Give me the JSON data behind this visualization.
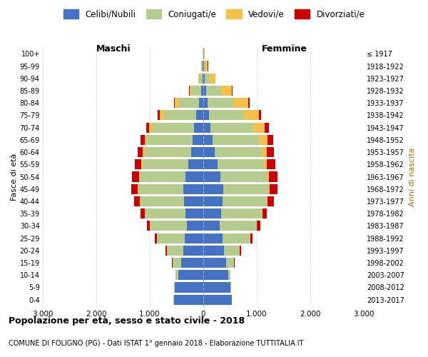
{
  "age_groups": [
    "0-4",
    "5-9",
    "10-14",
    "15-19",
    "20-24",
    "25-29",
    "30-34",
    "35-39",
    "40-44",
    "45-49",
    "50-54",
    "55-59",
    "60-64",
    "65-69",
    "70-74",
    "75-79",
    "80-84",
    "85-89",
    "90-94",
    "95-99",
    "100+"
  ],
  "birth_years": [
    "2013-2017",
    "2008-2012",
    "2003-2007",
    "1998-2002",
    "1993-1997",
    "1988-1992",
    "1983-1987",
    "1978-1982",
    "1973-1977",
    "1968-1972",
    "1963-1967",
    "1958-1962",
    "1953-1957",
    "1948-1952",
    "1943-1947",
    "1938-1942",
    "1933-1937",
    "1928-1932",
    "1923-1927",
    "1918-1922",
    "≤ 1917"
  ],
  "males": {
    "celibe": [
      550,
      540,
      470,
      420,
      380,
      350,
      310,
      330,
      360,
      380,
      340,
      280,
      230,
      200,
      170,
      130,
      80,
      40,
      20,
      10,
      5
    ],
    "coniugato": [
      5,
      10,
      50,
      150,
      300,
      520,
      680,
      760,
      820,
      840,
      850,
      860,
      870,
      850,
      780,
      600,
      380,
      180,
      60,
      20,
      5
    ],
    "vedovo": [
      0,
      0,
      0,
      1,
      2,
      3,
      5,
      5,
      8,
      10,
      15,
      20,
      30,
      50,
      60,
      80,
      70,
      40,
      15,
      5,
      2
    ],
    "divorziato": [
      0,
      1,
      3,
      10,
      20,
      40,
      60,
      80,
      100,
      120,
      130,
      120,
      100,
      80,
      60,
      40,
      20,
      10,
      5,
      2,
      0
    ]
  },
  "females": {
    "nubile": [
      530,
      510,
      460,
      430,
      390,
      360,
      310,
      330,
      360,
      370,
      320,
      260,
      210,
      170,
      130,
      110,
      80,
      50,
      25,
      15,
      5
    ],
    "coniugata": [
      5,
      10,
      45,
      140,
      290,
      510,
      680,
      760,
      820,
      840,
      860,
      870,
      880,
      870,
      800,
      650,
      480,
      280,
      100,
      30,
      10
    ],
    "vedova": [
      0,
      0,
      1,
      2,
      3,
      5,
      8,
      10,
      15,
      25,
      40,
      60,
      100,
      160,
      220,
      280,
      280,
      200,
      100,
      40,
      10
    ],
    "divorziata": [
      0,
      1,
      2,
      8,
      20,
      40,
      65,
      90,
      120,
      150,
      160,
      150,
      130,
      100,
      70,
      40,
      25,
      15,
      5,
      2,
      0
    ]
  },
  "colors": {
    "celibe": "#4472C4",
    "coniugato": "#B5CC8E",
    "vedovo": "#F5C04A",
    "divorziato": "#CC0000"
  },
  "legend_labels": [
    "Celibi/Nubili",
    "Coniugati/e",
    "Vedovi/e",
    "Divorziati/e"
  ],
  "ylabel_left": "Fasce di età",
  "ylabel_right": "Anni di nascita",
  "title": "Popolazione per età, sesso e stato civile - 2018",
  "subtitle": "COMUNE DI FOLIGNO (PG) - Dati ISTAT 1° gennaio 2018 - Elaborazione TUTTITALIA.IT",
  "xlim": 3000,
  "xtick_positions": [
    -3000,
    -2000,
    -1000,
    0,
    1000,
    2000,
    3000
  ],
  "xtick_labels": [
    "3.000",
    "2.000",
    "1.000",
    "0",
    "1.000",
    "2.000",
    "3.000"
  ],
  "maschi_label": "Maschi",
  "femmine_label": "Femmine",
  "background_color": "#ffffff",
  "bar_height": 0.82,
  "grid_color": "#cccccc",
  "center_line_color": "#aaaaaa"
}
